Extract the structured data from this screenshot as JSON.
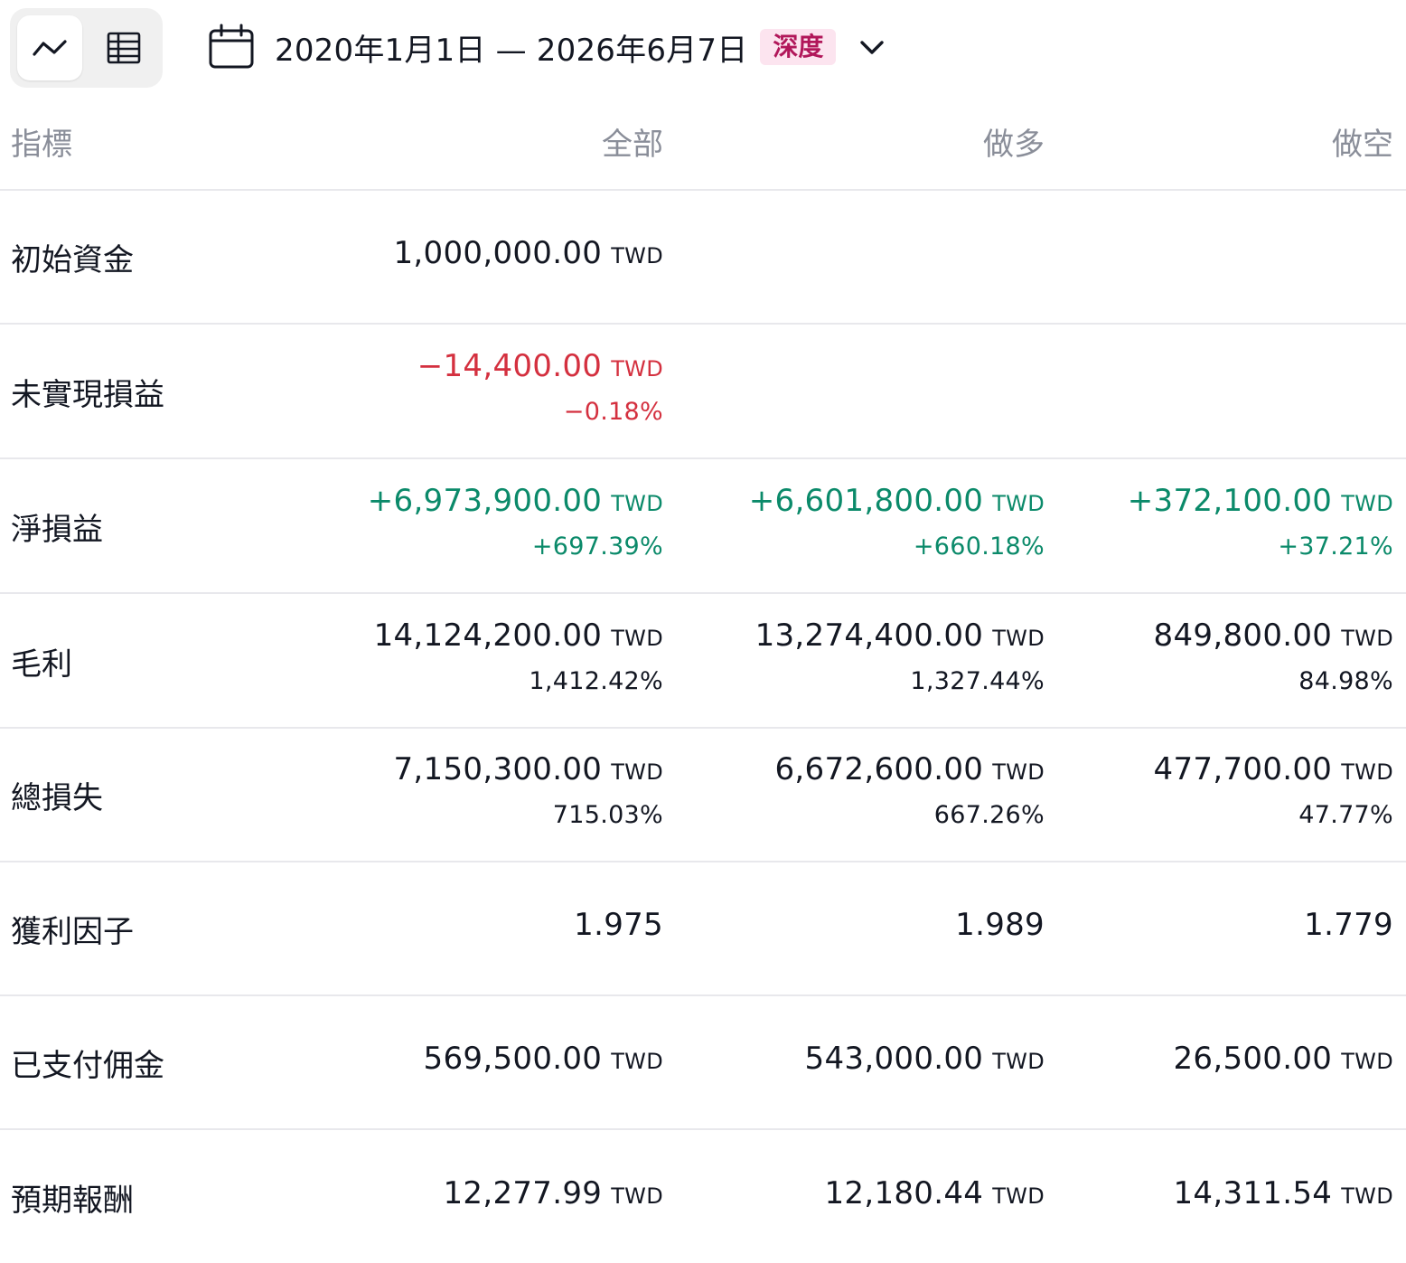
{
  "toolbar": {
    "view_icons": [
      "line-chart-icon",
      "table-icon"
    ],
    "date_range": "2020年1月1日 — 2026年6月7日",
    "badge": "深度",
    "badge_color": "#b1175a",
    "badge_bg": "#fce4ef"
  },
  "columns": {
    "metric": "指標",
    "all": "全部",
    "long": "做多",
    "short": "做空"
  },
  "colors": {
    "negative": "#d4303f",
    "positive": "#0b8a6a",
    "muted": "#8a8e99"
  },
  "rows": [
    {
      "label": "初始資金",
      "all": {
        "value": "1,000,000.00",
        "currency": "TWD"
      }
    },
    {
      "label": "未實現損益",
      "all": {
        "value": "−14,400.00",
        "currency": "TWD",
        "pct": "−0.18%"
      }
    },
    {
      "label": "淨損益",
      "all": {
        "value": "+6,973,900.00",
        "currency": "TWD",
        "pct": "+697.39%"
      },
      "long": {
        "value": "+6,601,800.00",
        "currency": "TWD",
        "pct": "+660.18%"
      },
      "short": {
        "value": "+372,100.00",
        "currency": "TWD",
        "pct": "+37.21%"
      }
    },
    {
      "label": "毛利",
      "all": {
        "value": "14,124,200.00",
        "currency": "TWD",
        "pct": "1,412.42%"
      },
      "long": {
        "value": "13,274,400.00",
        "currency": "TWD",
        "pct": "1,327.44%"
      },
      "short": {
        "value": "849,800.00",
        "currency": "TWD",
        "pct": "84.98%"
      }
    },
    {
      "label": "總損失",
      "all": {
        "value": "7,150,300.00",
        "currency": "TWD",
        "pct": "715.03%"
      },
      "long": {
        "value": "6,672,600.00",
        "currency": "TWD",
        "pct": "667.26%"
      },
      "short": {
        "value": "477,700.00",
        "currency": "TWD",
        "pct": "47.77%"
      }
    },
    {
      "label": "獲利因子",
      "all": {
        "value": "1.975"
      },
      "long": {
        "value": "1.989"
      },
      "short": {
        "value": "1.779"
      }
    },
    {
      "label": "已支付佣金",
      "all": {
        "value": "569,500.00",
        "currency": "TWD"
      },
      "long": {
        "value": "543,000.00",
        "currency": "TWD"
      },
      "short": {
        "value": "26,500.00",
        "currency": "TWD"
      }
    },
    {
      "label": "預期報酬",
      "all": {
        "value": "12,277.99",
        "currency": "TWD"
      },
      "long": {
        "value": "12,180.44",
        "currency": "TWD"
      },
      "short": {
        "value": "14,311.54",
        "currency": "TWD"
      }
    }
  ]
}
